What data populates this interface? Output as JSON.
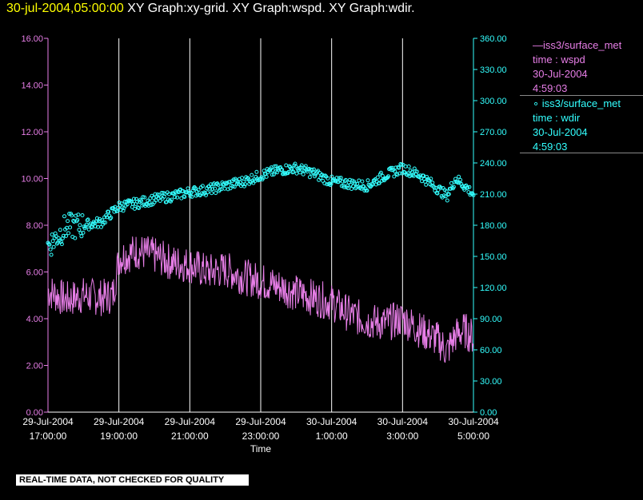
{
  "title": {
    "date": "30-jul-2004,05:00:00",
    "text": "XY Graph:xy-grid.  XY Graph:wspd.  XY Graph:wdir."
  },
  "colors": {
    "wspd": "#e77ee7",
    "wdir": "#33ffff",
    "axis_left": "#e77ee7",
    "axis_right": "#33ffff",
    "grid": "#ffffff",
    "title_date": "#ffff00"
  },
  "legend": {
    "wspd": {
      "line1": "iss3/surface_met",
      "line2": "time : wspd",
      "line3": "30-Jul-2004",
      "line4": "4:59:03"
    },
    "wdir": {
      "line1": "iss3/surface_met",
      "line2": "time : wdir",
      "line3": "30-Jul-2004",
      "line4": "4:59:03"
    }
  },
  "disclaimer": "REAL-TIME DATA, NOT CHECKED FOR QUALITY",
  "chart_data": {
    "type": "line",
    "xlabel": "Time",
    "x_tick_labels": [
      [
        "29-Jul-2004",
        "17:00:00"
      ],
      [
        "29-Jul-2004",
        "19:00:00"
      ],
      [
        "29-Jul-2004",
        "21:00:00"
      ],
      [
        "29-Jul-2004",
        "23:00:00"
      ],
      [
        "30-Jul-2004",
        "1:00:00"
      ],
      [
        "30-Jul-2004",
        "3:00:00"
      ],
      [
        "30-Jul-2004",
        "5:00:00"
      ]
    ],
    "xlim": [
      "2004-07-29 17:00",
      "2004-07-30 05:00"
    ],
    "y_left": {
      "lim": [
        0,
        16
      ],
      "ticks": [
        "0.00",
        "2.00",
        "4.00",
        "6.00",
        "8.00",
        "10.00",
        "12.00",
        "14.00",
        "16.00"
      ]
    },
    "y_right": {
      "lim": [
        0,
        360
      ],
      "ticks": [
        "0.00",
        "30.00",
        "60.00",
        "90.00",
        "120.00",
        "150.00",
        "180.00",
        "210.00",
        "240.00",
        "270.00",
        "300.00",
        "330.00",
        "360.00"
      ]
    },
    "grid": "vertical",
    "series": [
      {
        "name": "iss3/surface_met time : wspd",
        "axis": "left",
        "style": "line",
        "x": [
          "17:00",
          "17:30",
          "18:00",
          "18:30",
          "18:50",
          "19:00",
          "19:30",
          "20:00",
          "20:30",
          "21:00",
          "21:30",
          "22:00",
          "22:30",
          "23:00",
          "23:30",
          "0:00",
          "0:30",
          "1:00",
          "1:30",
          "2:00",
          "2:30",
          "3:00",
          "3:30",
          "4:00",
          "4:15",
          "4:30",
          "4:45",
          "5:00"
        ],
        "values": [
          5.2,
          4.8,
          5.0,
          4.9,
          5.0,
          6.6,
          6.9,
          6.7,
          6.4,
          6.3,
          6.0,
          6.1,
          5.8,
          5.6,
          5.4,
          5.1,
          4.9,
          4.7,
          4.2,
          3.9,
          3.8,
          4.0,
          3.5,
          3.1,
          2.6,
          3.3,
          3.5,
          3.2
        ]
      },
      {
        "name": "iss3/surface_met time : wdir",
        "axis": "right",
        "style": "scatter",
        "x": [
          "17:00",
          "17:30",
          "18:00",
          "18:30",
          "19:00",
          "19:30",
          "20:00",
          "20:30",
          "21:00",
          "21:30",
          "22:00",
          "22:30",
          "23:00",
          "23:30",
          "0:00",
          "0:30",
          "1:00",
          "1:30",
          "2:00",
          "2:30",
          "3:00",
          "3:30",
          "4:00",
          "4:15",
          "4:30",
          "4:45",
          "5:00"
        ],
        "values": [
          160,
          178,
          180,
          183,
          198,
          201,
          205,
          208,
          212,
          214,
          218,
          222,
          228,
          233,
          235,
          230,
          222,
          220,
          218,
          228,
          235,
          228,
          215,
          208,
          225,
          218,
          210
        ]
      }
    ]
  }
}
